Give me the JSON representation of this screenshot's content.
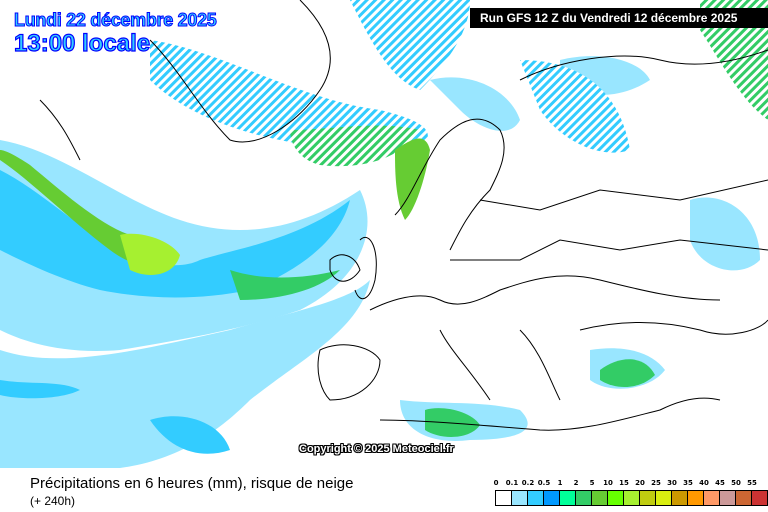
{
  "header": {
    "date": "Lundi 22 décembre 2025",
    "time": "13:00 locale",
    "run": "Run GFS 12 Z du Vendredi 12 décembre 2025"
  },
  "map": {
    "copyright": "Copyright © 2025 Meteociel.fr"
  },
  "legend": {
    "title": "Précipitations en 6 heures (mm), risque de neige",
    "subtitle": "(+ 240h)",
    "labels": [
      "0",
      "0.1",
      "0.2",
      "0.5",
      "1",
      "2",
      "5",
      "10",
      "15",
      "20",
      "25",
      "30",
      "35",
      "40",
      "45",
      "50",
      "55"
    ],
    "colors": [
      "#ffffff",
      "#99e6ff",
      "#33ccff",
      "#0099ff",
      "#00ff99",
      "#33cc66",
      "#66cc33",
      "#66ff00",
      "#a6f030",
      "#bfcc10",
      "#d9ee10",
      "#cc9900",
      "#ff9900",
      "#ff9966",
      "#cc9999",
      "#cc6633",
      "#cc3333"
    ]
  }
}
